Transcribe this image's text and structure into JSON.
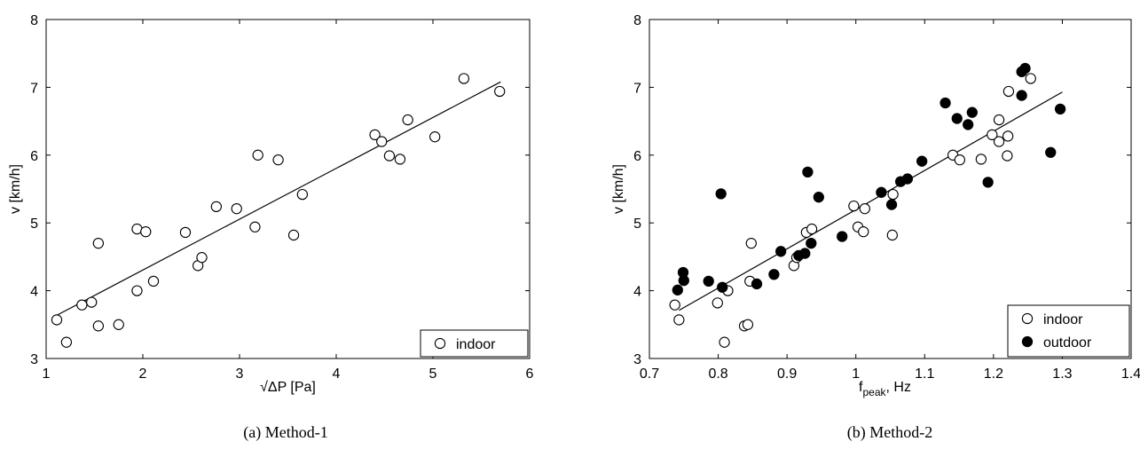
{
  "chart_data": [
    {
      "type": "scatter",
      "caption": "(a) Method-1",
      "xlabel": "√ΔP [Pa]",
      "ylabel": "v [km/h]",
      "xlim": [
        1,
        6
      ],
      "ylim": [
        3,
        8
      ],
      "xticks": [
        "1",
        "2",
        "3",
        "4",
        "5",
        "6"
      ],
      "yticks": [
        "3",
        "4",
        "5",
        "6",
        "7",
        "8"
      ],
      "grid": false,
      "legend_position": "bottom-right",
      "series": [
        {
          "name": "indoor",
          "marker": "open-circle",
          "points": [
            [
              1.11,
              3.57
            ],
            [
              1.21,
              3.24
            ],
            [
              1.37,
              3.79
            ],
            [
              1.47,
              3.83
            ],
            [
              1.54,
              4.7
            ],
            [
              1.54,
              3.48
            ],
            [
              1.75,
              3.5
            ],
            [
              1.94,
              4.0
            ],
            [
              1.94,
              4.91
            ],
            [
              2.03,
              4.87
            ],
            [
              2.11,
              4.14
            ],
            [
              2.44,
              4.86
            ],
            [
              2.57,
              4.37
            ],
            [
              2.61,
              4.49
            ],
            [
              2.76,
              5.24
            ],
            [
              2.97,
              5.21
            ],
            [
              3.16,
              4.94
            ],
            [
              3.19,
              6.0
            ],
            [
              3.4,
              5.93
            ],
            [
              3.56,
              4.82
            ],
            [
              3.65,
              5.42
            ],
            [
              4.4,
              6.3
            ],
            [
              4.47,
              6.2
            ],
            [
              4.55,
              5.99
            ],
            [
              4.66,
              5.94
            ],
            [
              4.74,
              6.52
            ],
            [
              5.02,
              6.27
            ],
            [
              5.32,
              7.13
            ],
            [
              5.69,
              6.94
            ]
          ]
        }
      ],
      "fit_line": {
        "x": [
          1.1,
          5.7
        ],
        "y": [
          3.63,
          7.08
        ]
      }
    },
    {
      "type": "scatter",
      "caption": "(b) Method-2",
      "xlabel_main": "f",
      "xlabel_sub": "peak",
      "xlabel_tail": ", Hz",
      "ylabel": "v [km/h]",
      "xlim": [
        0.7,
        1.4
      ],
      "ylim": [
        3,
        8
      ],
      "xticks": [
        "0.7",
        "0.8",
        "0.9",
        "1",
        "1.1",
        "1.2",
        "1.3",
        "1.4"
      ],
      "yticks": [
        "3",
        "4",
        "5",
        "6",
        "7",
        "8"
      ],
      "grid": false,
      "legend_position": "bottom-right",
      "series": [
        {
          "name": "indoor",
          "marker": "open-circle",
          "points": [
            [
              0.737,
              3.79
            ],
            [
              0.743,
              3.57
            ],
            [
              0.799,
              3.82
            ],
            [
              0.809,
              3.24
            ],
            [
              0.814,
              4.0
            ],
            [
              0.838,
              3.48
            ],
            [
              0.843,
              3.5
            ],
            [
              0.846,
              4.14
            ],
            [
              0.848,
              4.7
            ],
            [
              0.91,
              4.37
            ],
            [
              0.914,
              4.49
            ],
            [
              0.928,
              4.86
            ],
            [
              0.936,
              4.91
            ],
            [
              0.997,
              5.25
            ],
            [
              1.003,
              4.94
            ],
            [
              1.011,
              4.87
            ],
            [
              1.013,
              5.21
            ],
            [
              1.053,
              4.82
            ],
            [
              1.054,
              5.42
            ],
            [
              1.141,
              6.0
            ],
            [
              1.151,
              5.93
            ],
            [
              1.182,
              5.94
            ],
            [
              1.198,
              6.3
            ],
            [
              1.208,
              6.2
            ],
            [
              1.208,
              6.52
            ],
            [
              1.22,
              5.99
            ],
            [
              1.221,
              6.28
            ],
            [
              1.222,
              6.94
            ],
            [
              1.254,
              7.13
            ]
          ]
        },
        {
          "name": "outdoor",
          "marker": "filled-circle",
          "points": [
            [
              0.741,
              4.01
            ],
            [
              0.749,
              4.27
            ],
            [
              0.75,
              4.15
            ],
            [
              0.786,
              4.14
            ],
            [
              0.804,
              5.43
            ],
            [
              0.806,
              4.05
            ],
            [
              0.856,
              4.1
            ],
            [
              0.881,
              4.24
            ],
            [
              0.891,
              4.58
            ],
            [
              0.917,
              4.52
            ],
            [
              0.926,
              4.55
            ],
            [
              0.93,
              5.75
            ],
            [
              0.935,
              4.7
            ],
            [
              0.946,
              5.38
            ],
            [
              0.98,
              4.8
            ],
            [
              1.037,
              5.45
            ],
            [
              1.052,
              5.27
            ],
            [
              1.065,
              5.61
            ],
            [
              1.075,
              5.65
            ],
            [
              1.096,
              5.91
            ],
            [
              1.13,
              6.77
            ],
            [
              1.147,
              6.54
            ],
            [
              1.163,
              6.45
            ],
            [
              1.169,
              6.63
            ],
            [
              1.192,
              5.6
            ],
            [
              1.241,
              6.88
            ],
            [
              1.241,
              7.23
            ],
            [
              1.246,
              7.28
            ],
            [
              1.283,
              6.04
            ],
            [
              1.297,
              6.68
            ]
          ]
        }
      ],
      "fit_line": {
        "x": [
          0.743,
          1.3
        ],
        "y": [
          3.71,
          6.93
        ]
      }
    }
  ]
}
